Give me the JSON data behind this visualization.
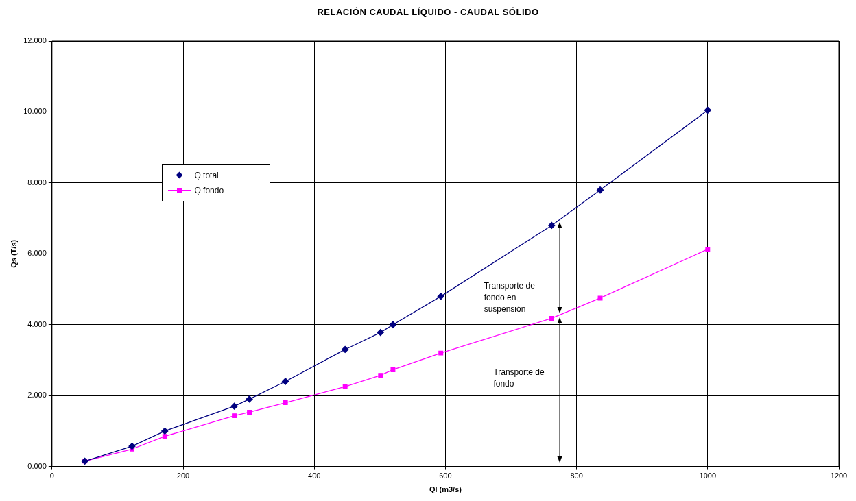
{
  "chart_data": {
    "type": "line",
    "title": "RELACIÓN CAUDAL LÍQUIDO - CAUDAL SÓLIDO",
    "xlabel": "Ql (m3/s)",
    "ylabel": "Qs (T/s)",
    "x": [
      50,
      122,
      172,
      278,
      301,
      356,
      447,
      501,
      520,
      593,
      762,
      836,
      1000
    ],
    "series": [
      {
        "name": "Q total",
        "color": "#000080",
        "marker": "diamond",
        "values": [
          0.15,
          0.57,
          1.0,
          1.7,
          1.9,
          2.4,
          3.3,
          3.78,
          4.0,
          4.8,
          6.8,
          7.8,
          10.05
        ]
      },
      {
        "name": "Q fondo",
        "color": "#ff00ff",
        "marker": "square",
        "values": [
          0.15,
          0.49,
          0.85,
          1.43,
          1.53,
          1.8,
          2.25,
          2.57,
          2.73,
          3.2,
          4.18,
          4.75,
          6.13
        ]
      }
    ],
    "xlim": [
      0,
      1200
    ],
    "xticks": [
      0,
      200,
      400,
      600,
      800,
      1000,
      1200
    ],
    "ylim": [
      0,
      12
    ],
    "yticks": [
      {
        "value": 0,
        "label": "0.000"
      },
      {
        "value": 2,
        "label": "2.000"
      },
      {
        "value": 4,
        "label": "4.000"
      },
      {
        "value": 6,
        "label": "6.000"
      },
      {
        "value": 8,
        "label": "8.000"
      },
      {
        "value": 10,
        "label": "10.000"
      },
      {
        "value": 12,
        "label": "12.000"
      }
    ],
    "grid": true,
    "legend": "top left",
    "annotations": [
      "Transporte  de fondo en suspensión",
      "Transporte de fondo"
    ]
  }
}
